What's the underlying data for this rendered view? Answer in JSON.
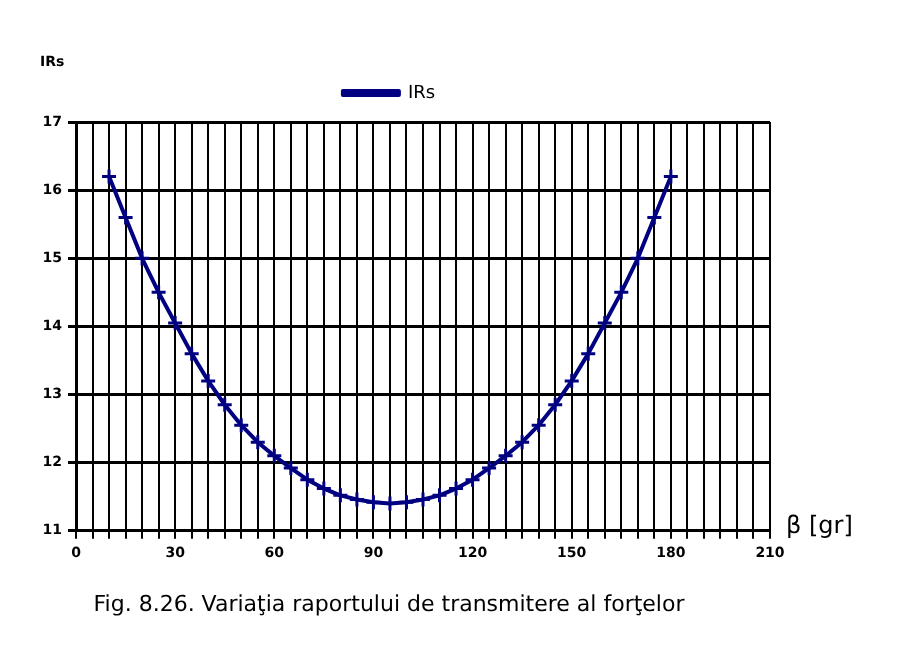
{
  "chart_data": {
    "type": "line",
    "title": "Fig. 8.26. Variaţia raportului de transmitere al forţelor",
    "xlabel": "β [gr]",
    "ylabel": "IRs",
    "x": [
      10,
      15,
      20,
      25,
      30,
      35,
      40,
      45,
      50,
      55,
      60,
      65,
      70,
      75,
      80,
      85,
      90,
      95,
      100,
      105,
      110,
      115,
      120,
      125,
      130,
      135,
      140,
      145,
      150,
      155,
      160,
      165,
      170,
      175,
      180
    ],
    "series": [
      {
        "name": "IRs",
        "color": "#000080",
        "values": [
          16.2,
          15.6,
          15.0,
          14.5,
          14.05,
          13.6,
          13.2,
          12.85,
          12.55,
          12.3,
          12.1,
          11.92,
          11.75,
          11.62,
          11.52,
          11.46,
          11.42,
          11.4,
          11.42,
          11.46,
          11.52,
          11.62,
          11.75,
          11.92,
          12.1,
          12.3,
          12.55,
          12.85,
          13.2,
          13.6,
          14.05,
          14.5,
          15.0,
          15.6,
          16.2
        ]
      }
    ],
    "xlim": [
      0,
      210
    ],
    "xticks": [
      0,
      {
        "value": 5,
        "label": null
      },
      {
        "value": 10,
        "label": null
      },
      {
        "value": 15,
        "label": null
      },
      {
        "value": 20,
        "label": null
      },
      {
        "value": 25,
        "label": null
      },
      30,
      {
        "value": 35,
        "label": null
      },
      {
        "value": 40,
        "label": null
      },
      {
        "value": 45,
        "label": null
      },
      {
        "value": 50,
        "label": null
      },
      {
        "value": 55,
        "label": null
      },
      60,
      {
        "value": 65,
        "label": null
      },
      {
        "value": 70,
        "label": null
      },
      {
        "value": 75,
        "label": null
      },
      {
        "value": 80,
        "label": null
      },
      {
        "value": 85,
        "label": null
      },
      90,
      {
        "value": 95,
        "label": null
      },
      {
        "value": 100,
        "label": null
      },
      {
        "value": 105,
        "label": null
      },
      {
        "value": 110,
        "label": null
      },
      {
        "value": 115,
        "label": null
      },
      120,
      {
        "value": 125,
        "label": null
      },
      {
        "value": 130,
        "label": null
      },
      {
        "value": 135,
        "label": null
      },
      {
        "value": 140,
        "label": null
      },
      {
        "value": 145,
        "label": null
      },
      150,
      {
        "value": 155,
        "label": null
      },
      {
        "value": 160,
        "label": null
      },
      {
        "value": 165,
        "label": null
      },
      {
        "value": 170,
        "label": null
      },
      {
        "value": 175,
        "label": null
      },
      180,
      {
        "value": 185,
        "label": null
      },
      {
        "value": 190,
        "label": null
      },
      {
        "value": 195,
        "label": null
      },
      {
        "value": 200,
        "label": null
      },
      {
        "value": 205,
        "label": null
      },
      210
    ],
    "ylim": [
      11,
      17
    ],
    "yticks": [
      11,
      12,
      13,
      14,
      15,
      16,
      17
    ],
    "grid": true,
    "legend": "top",
    "marker": "cross",
    "line_style": "solid"
  }
}
